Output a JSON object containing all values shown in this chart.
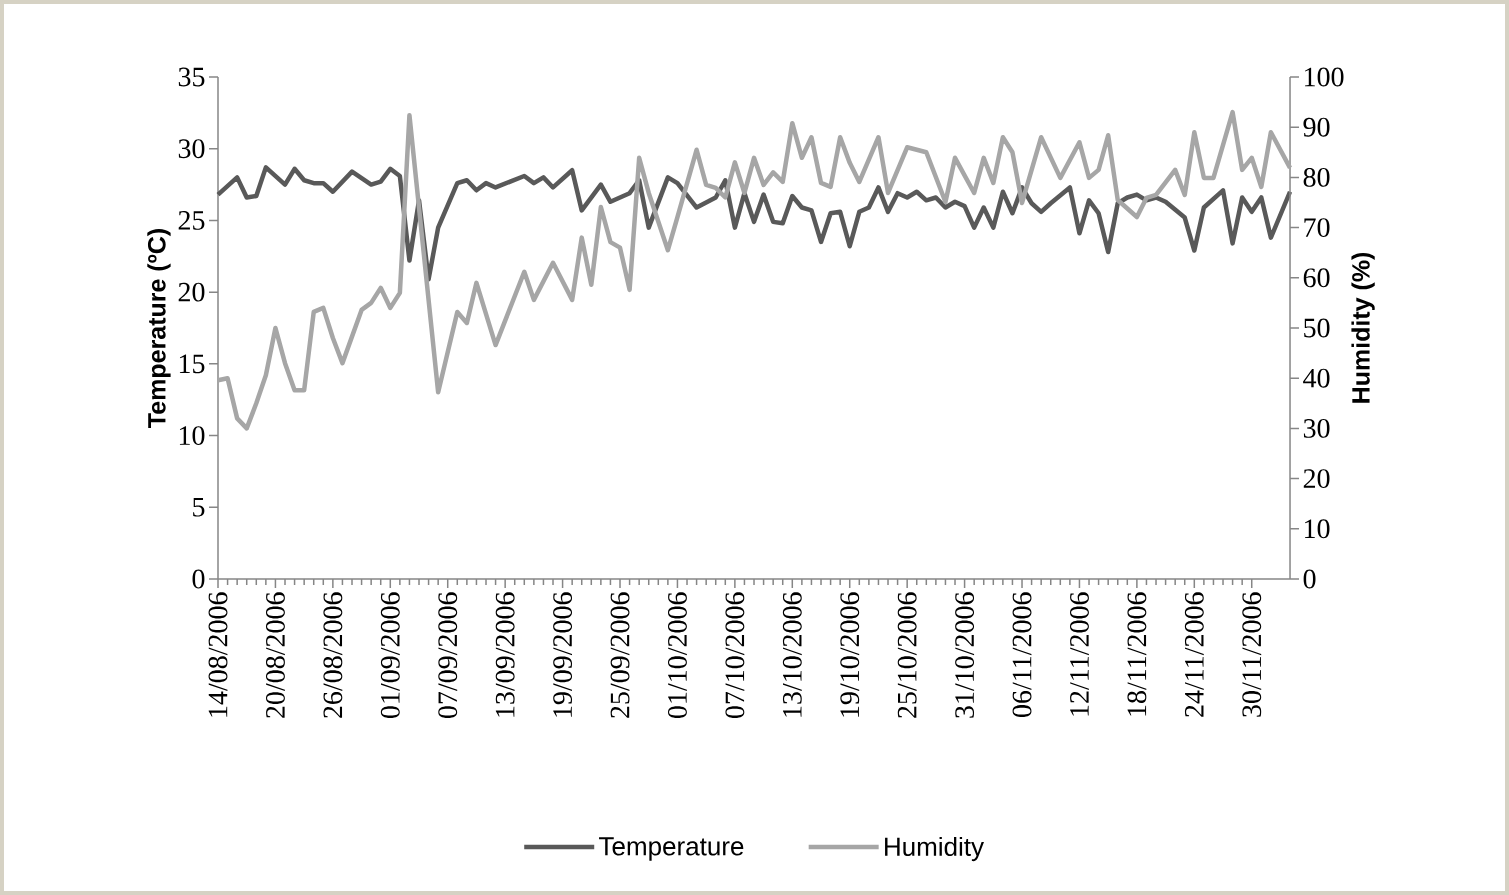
{
  "chart_data": {
    "type": "line",
    "ylabel": "Temperature (ºC)",
    "y2label": "Humidity (%)",
    "xlim": [
      "2006-08-14",
      "2006-12-04"
    ],
    "xticks": [
      {
        "value": "2006-08-14",
        "label": "14/08/2006"
      },
      {
        "value": "2006-08-20",
        "label": "20/08/2006"
      },
      {
        "value": "2006-08-26",
        "label": "26/08/2006"
      },
      {
        "value": "2006-09-01",
        "label": "01/09/2006"
      },
      {
        "value": "2006-09-07",
        "label": "07/09/2006"
      },
      {
        "value": "2006-09-13",
        "label": "13/09/2006"
      },
      {
        "value": "2006-09-19",
        "label": "19/09/2006"
      },
      {
        "value": "2006-09-25",
        "label": "25/09/2006"
      },
      {
        "value": "2006-10-01",
        "label": "01/10/2006"
      },
      {
        "value": "2006-10-07",
        "label": "07/10/2006"
      },
      {
        "value": "2006-10-13",
        "label": "13/10/2006"
      },
      {
        "value": "2006-10-19",
        "label": "19/10/2006"
      },
      {
        "value": "2006-10-25",
        "label": "25/10/2006"
      },
      {
        "value": "2006-10-31",
        "label": "31/10/2006"
      },
      {
        "value": "2006-11-06",
        "label": "06/11/2006"
      },
      {
        "value": "2006-11-12",
        "label": "12/11/2006"
      },
      {
        "value": "2006-11-18",
        "label": "18/11/2006"
      },
      {
        "value": "2006-11-24",
        "label": "24/11/2006"
      },
      {
        "value": "2006-11-30",
        "label": "30/11/2006"
      }
    ],
    "ylim": [
      0,
      35
    ],
    "yticks": [
      0,
      5,
      10,
      15,
      20,
      25,
      30,
      35
    ],
    "y2lim": [
      0,
      100
    ],
    "y2ticks": [
      0,
      10,
      20,
      30,
      40,
      50,
      60,
      70,
      80,
      90,
      100
    ],
    "legend": "bottom",
    "line_style": "solid",
    "series": [
      {
        "name": "Temperature",
        "color": "#595959",
        "x": [
          "2006-08-14",
          "2006-08-16",
          "2006-08-17",
          "2006-08-18",
          "2006-08-19",
          "2006-08-21",
          "2006-08-22",
          "2006-08-23",
          "2006-08-24",
          "2006-08-25",
          "2006-08-26",
          "2006-08-28",
          "2006-08-30",
          "2006-08-31",
          "2006-09-01",
          "2006-09-02",
          "2006-09-03",
          "2006-09-04",
          "2006-09-05",
          "2006-09-06",
          "2006-09-08",
          "2006-09-09",
          "2006-09-10",
          "2006-09-11",
          "2006-09-12",
          "2006-09-15",
          "2006-09-16",
          "2006-09-17",
          "2006-09-18",
          "2006-09-20",
          "2006-09-21",
          "2006-09-23",
          "2006-09-24",
          "2006-09-26",
          "2006-09-27",
          "2006-09-28",
          "2006-09-30",
          "2006-10-01",
          "2006-10-03",
          "2006-10-05",
          "2006-10-06",
          "2006-10-07",
          "2006-10-08",
          "2006-10-09",
          "2006-10-10",
          "2006-10-11",
          "2006-10-12",
          "2006-10-13",
          "2006-10-14",
          "2006-10-15",
          "2006-10-16",
          "2006-10-17",
          "2006-10-18",
          "2006-10-19",
          "2006-10-20",
          "2006-10-21",
          "2006-10-22",
          "2006-10-23",
          "2006-10-24",
          "2006-10-25",
          "2006-10-26",
          "2006-10-27",
          "2006-10-28",
          "2006-10-29",
          "2006-10-30",
          "2006-10-31",
          "2006-11-01",
          "2006-11-02",
          "2006-11-03",
          "2006-11-04",
          "2006-11-05",
          "2006-11-06",
          "2006-11-07",
          "2006-11-08",
          "2006-11-09",
          "2006-11-11",
          "2006-11-12",
          "2006-11-13",
          "2006-11-14",
          "2006-11-15",
          "2006-11-16",
          "2006-11-17",
          "2006-11-18",
          "2006-11-19",
          "2006-11-20",
          "2006-11-21",
          "2006-11-23",
          "2006-11-24",
          "2006-11-25",
          "2006-11-27",
          "2006-11-28",
          "2006-11-29",
          "2006-11-30",
          "2006-12-01",
          "2006-12-02",
          "2006-12-04"
        ],
        "values": [
          26.8,
          28.0,
          26.6,
          26.7,
          28.7,
          27.5,
          28.6,
          27.8,
          27.6,
          27.6,
          27.0,
          28.4,
          27.5,
          27.7,
          28.6,
          28.1,
          22.2,
          26.4,
          20.9,
          24.5,
          27.6,
          27.8,
          27.1,
          27.6,
          27.3,
          28.1,
          27.6,
          28.0,
          27.3,
          28.5,
          25.7,
          27.5,
          26.3,
          26.9,
          27.8,
          24.5,
          28.0,
          27.6,
          25.9,
          26.6,
          27.8,
          24.5,
          26.9,
          24.9,
          26.8,
          24.9,
          24.8,
          26.7,
          25.9,
          25.7,
          23.5,
          25.5,
          25.6,
          23.2,
          25.6,
          25.9,
          27.3,
          25.6,
          26.9,
          26.6,
          27.0,
          26.4,
          26.6,
          25.9,
          26.3,
          26.0,
          24.5,
          25.9,
          24.5,
          27.0,
          25.5,
          27.3,
          26.2,
          25.6,
          26.2,
          27.3,
          24.1,
          26.4,
          25.5,
          22.8,
          26.2,
          26.6,
          26.8,
          26.4,
          26.6,
          26.3,
          25.2,
          22.9,
          25.9,
          27.1,
          23.4,
          26.6,
          25.6,
          26.6,
          23.8,
          27.0
        ]
      },
      {
        "name": "Humidity",
        "color": "#a6a6a6",
        "axis": "y2",
        "x": [
          "2006-08-14",
          "2006-08-15",
          "2006-08-16",
          "2006-08-17",
          "2006-08-18",
          "2006-08-19",
          "2006-08-20",
          "2006-08-21",
          "2006-08-22",
          "2006-08-23",
          "2006-08-24",
          "2006-08-25",
          "2006-08-26",
          "2006-08-27",
          "2006-08-29",
          "2006-08-30",
          "2006-08-31",
          "2006-09-01",
          "2006-09-02",
          "2006-09-03",
          "2006-09-06",
          "2006-09-08",
          "2006-09-09",
          "2006-09-10",
          "2006-09-12",
          "2006-09-15",
          "2006-09-16",
          "2006-09-18",
          "2006-09-20",
          "2006-09-21",
          "2006-09-22",
          "2006-09-23",
          "2006-09-24",
          "2006-09-25",
          "2006-09-26",
          "2006-09-27",
          "2006-09-28",
          "2006-09-30",
          "2006-10-01",
          "2006-10-03",
          "2006-10-04",
          "2006-10-05",
          "2006-10-06",
          "2006-10-07",
          "2006-10-08",
          "2006-10-09",
          "2006-10-10",
          "2006-10-11",
          "2006-10-12",
          "2006-10-13",
          "2006-10-14",
          "2006-10-15",
          "2006-10-16",
          "2006-10-17",
          "2006-10-18",
          "2006-10-19",
          "2006-10-20",
          "2006-10-22",
          "2006-10-23",
          "2006-10-25",
          "2006-10-26",
          "2006-10-27",
          "2006-10-29",
          "2006-10-30",
          "2006-11-01",
          "2006-11-02",
          "2006-11-03",
          "2006-11-04",
          "2006-11-05",
          "2006-11-06",
          "2006-11-08",
          "2006-11-10",
          "2006-11-12",
          "2006-11-13",
          "2006-11-14",
          "2006-11-15",
          "2006-11-16",
          "2006-11-18",
          "2006-11-19",
          "2006-11-20",
          "2006-11-22",
          "2006-11-23",
          "2006-11-24",
          "2006-11-25",
          "2006-11-26",
          "2006-11-28",
          "2006-11-29",
          "2006-11-30",
          "2006-12-01",
          "2006-12-02",
          "2006-12-04"
        ],
        "values": [
          39.6,
          40,
          32,
          30,
          35,
          40.6,
          50,
          43,
          37.6,
          37.6,
          53.2,
          54,
          48,
          43,
          53.6,
          55,
          58,
          54,
          57,
          92.4,
          37.2,
          53.2,
          51,
          59,
          46.6,
          61.2,
          55.6,
          63,
          55.6,
          68,
          58.6,
          74.1,
          67.1,
          66,
          57.6,
          83.9,
          76.9,
          65.5,
          72.1,
          85.5,
          78.5,
          77.9,
          76,
          83,
          76.9,
          83.9,
          78.5,
          81,
          79.1,
          90.8,
          83.9,
          88,
          78.9,
          78.1,
          88,
          82.9,
          79.1,
          88,
          76.9,
          86,
          85.5,
          85,
          75.1,
          83.9,
          76.9,
          83.9,
          78.9,
          88,
          85,
          74.9,
          88,
          79.9,
          87,
          79.9,
          81.5,
          88.4,
          75.5,
          72.1,
          75.9,
          76.5,
          81.5,
          76.5,
          89,
          79.9,
          79.9,
          93,
          81.5,
          83.9,
          78.1,
          89,
          81.9
        ]
      }
    ]
  }
}
